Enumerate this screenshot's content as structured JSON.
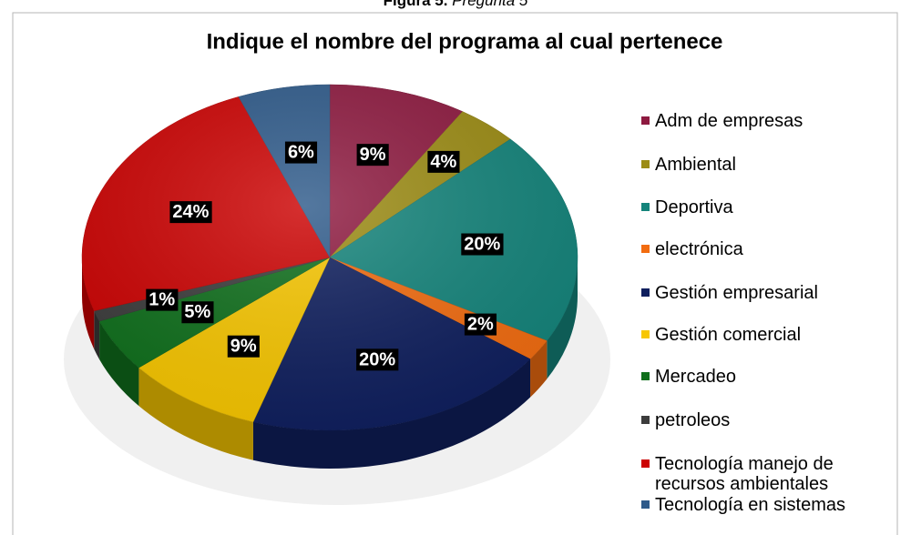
{
  "figure_label": "Figura 5.",
  "figure_caption": "Pregunta 5",
  "chart_data": {
    "type": "pie",
    "title": "Indique el nombre del programa al cual pertenece",
    "categories": [
      "Adm de empresas",
      "Ambiental",
      "Deportiva",
      "electrónica",
      "Gestión empresarial",
      "Gestión comercial",
      "Mercadeo",
      "petroleos",
      "Tecnología manejo de recursos ambientales",
      "Tecnología en sistemas"
    ],
    "values": [
      9,
      4,
      20,
      2,
      20,
      9,
      5,
      1,
      24,
      6
    ],
    "value_labels": [
      "9%",
      "4%",
      "20%",
      "2%",
      "20%",
      "9%",
      "5%",
      "1%",
      "24%",
      "6%"
    ],
    "colors": [
      "#8e1a40",
      "#9c8c14",
      "#14847b",
      "#f26c10",
      "#0f1f5e",
      "#f7c600",
      "#0f6f1c",
      "#3c3c3c",
      "#cc0202",
      "#2e5a8a"
    ],
    "legend": "right"
  }
}
